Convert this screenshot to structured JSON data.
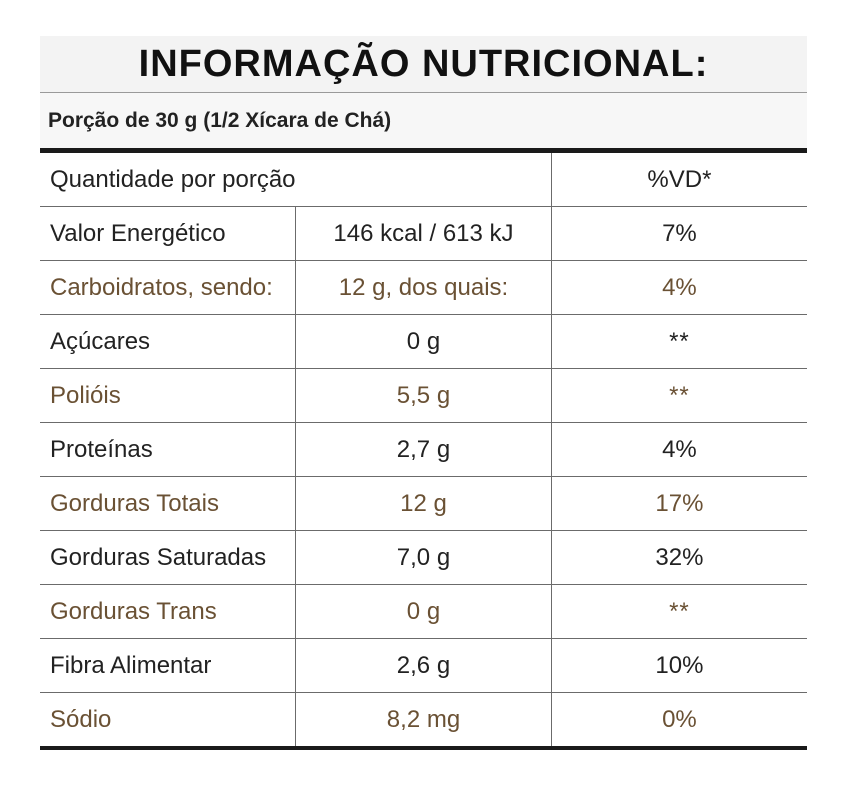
{
  "title": "INFORMAÇÃO NUTRICIONAL:",
  "portion": "Porção de 30 g (1/2 Xícara de Chá)",
  "header": {
    "amount_label": "Quantidade por porção",
    "vd_label": "%VD*"
  },
  "colors": {
    "dark_text": "#222222",
    "brown_text": "#6a5134",
    "rule": "#1a1a1a"
  },
  "rows": [
    {
      "name": "Valor Energético",
      "qty": "146 kcal / 613 kJ",
      "vd": "7%"
    },
    {
      "name": "Carboidratos, sendo:",
      "qty": "12 g, dos quais:",
      "vd": "4%"
    },
    {
      "name": "Açúcares",
      "qty": "0 g",
      "vd": "**"
    },
    {
      "name": "Polióis",
      "qty": "5,5 g",
      "vd": "**"
    },
    {
      "name": "Proteínas",
      "qty": "2,7 g",
      "vd": "4%"
    },
    {
      "name": "Gorduras Totais",
      "qty": "12 g",
      "vd": "17%"
    },
    {
      "name": "Gorduras Saturadas",
      "qty": "7,0 g",
      "vd": "32%"
    },
    {
      "name": "Gorduras Trans",
      "qty": "0 g",
      "vd": "**"
    },
    {
      "name": "Fibra Alimentar",
      "qty": "2,6 g",
      "vd": "10%"
    },
    {
      "name": "Sódio",
      "qty": "8,2 mg",
      "vd": "0%"
    }
  ]
}
